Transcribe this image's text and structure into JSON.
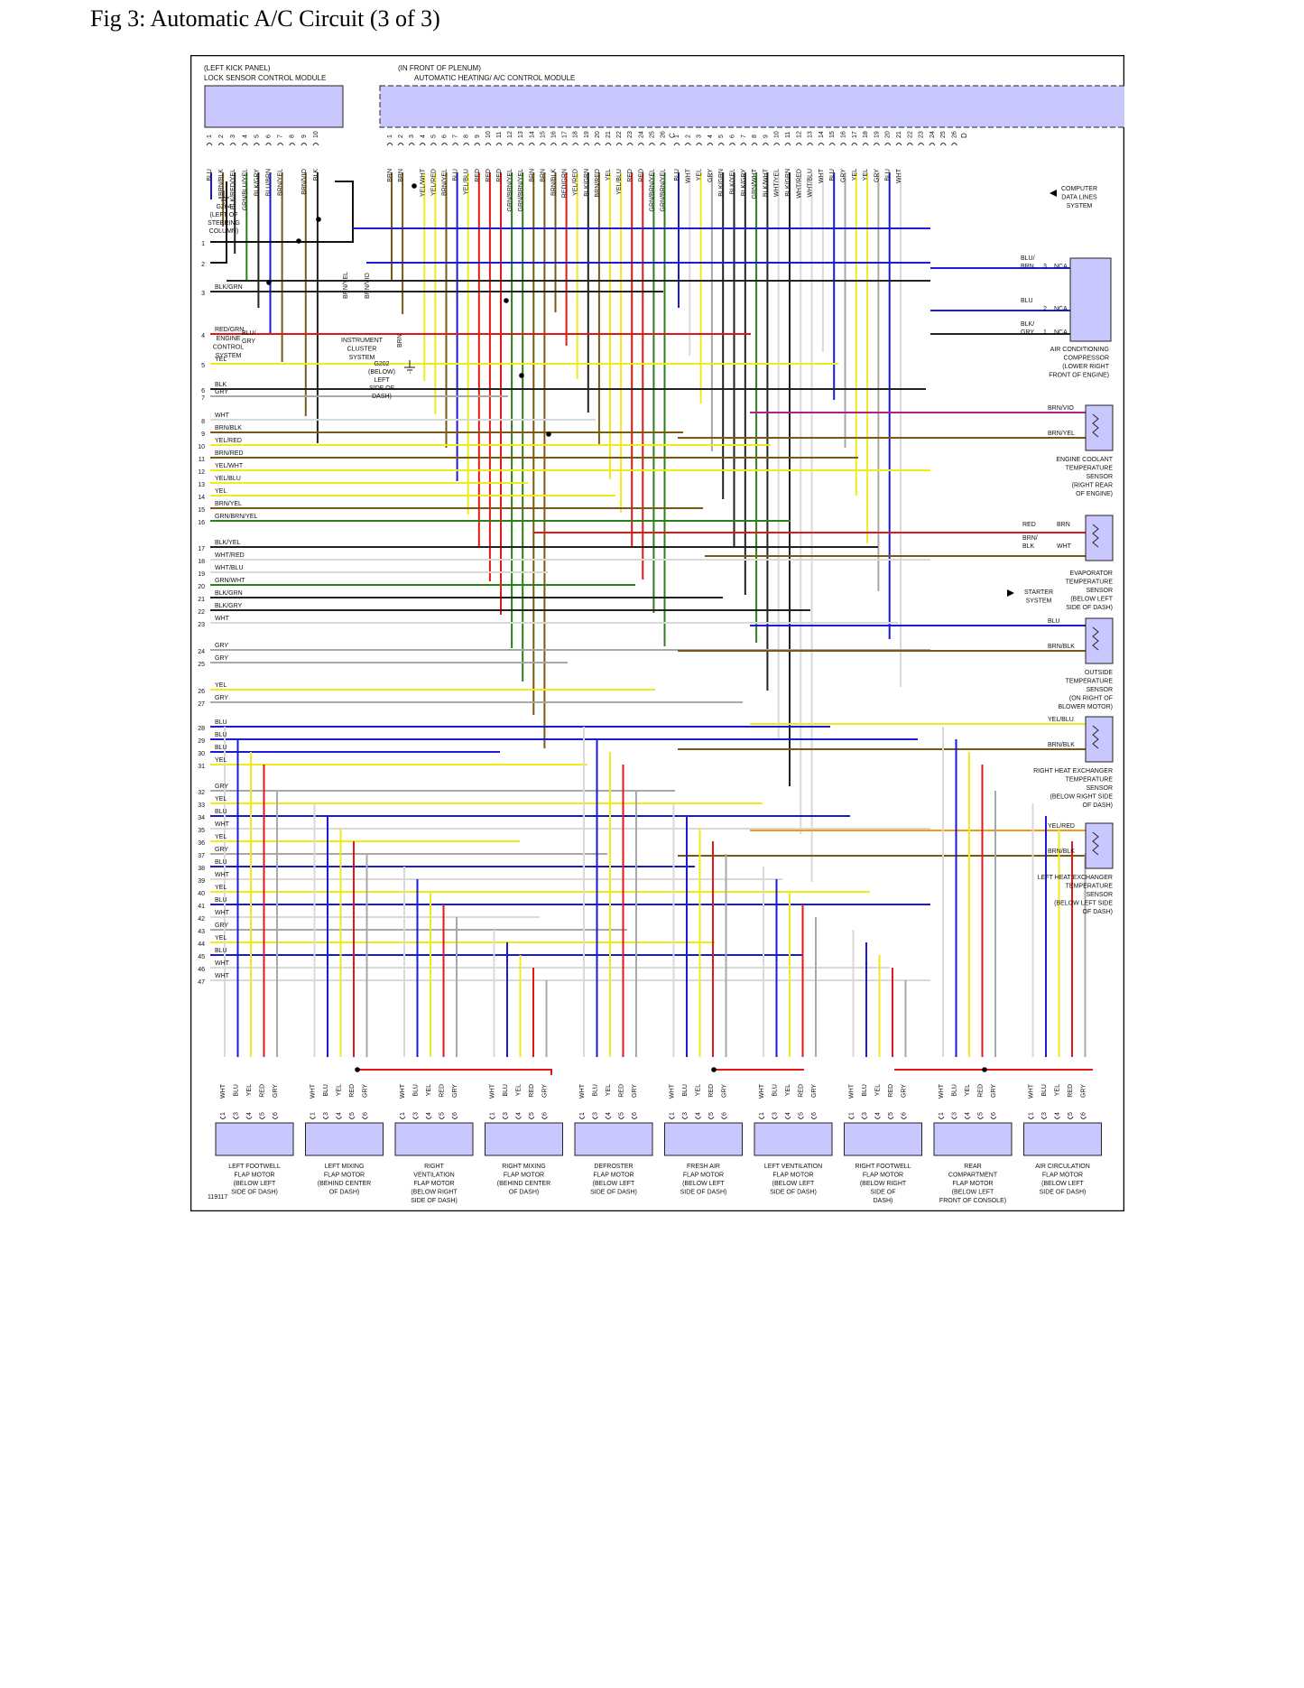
{
  "page_title": "Fig 3: Automatic A/C Circuit (3 of 3)",
  "figure_id": "119117",
  "lock_module": {
    "location": "(LEFT KICK PANEL)",
    "name": "LOCK SENSOR CONTROL MODULE",
    "pins": [
      {
        "n": "1",
        "c": "BLU"
      },
      {
        "n": "2",
        "c": "BRN/BLK"
      },
      {
        "n": "3",
        "c": "BLK/RED/YEL"
      },
      {
        "n": "4",
        "c": "GRN/BLU/YEL"
      },
      {
        "n": "5",
        "c": "BLK/GRY"
      },
      {
        "n": "6",
        "c": "BLU/BRN"
      },
      {
        "n": "7",
        "c": "BRN/YEL"
      },
      {
        "n": "8",
        "c": ""
      },
      {
        "n": "9",
        "c": "BRN/VIO"
      },
      {
        "n": "10",
        "c": "BLK"
      }
    ]
  },
  "ac_module": {
    "location": "(IN FRONT OF PLENUM)",
    "name": "AUTOMATIC HEATING/ A/C CONTROL MODULE",
    "conn_c": [
      {
        "n": "1",
        "c": "BRN"
      },
      {
        "n": "2",
        "c": "BRN"
      },
      {
        "n": "3",
        "c": ""
      },
      {
        "n": "4",
        "c": "YEL/WHT"
      },
      {
        "n": "5",
        "c": "YEL/RED"
      },
      {
        "n": "6",
        "c": "BRN/YEL"
      },
      {
        "n": "7",
        "c": "BLU"
      },
      {
        "n": "8",
        "c": "YEL/BLU"
      },
      {
        "n": "9",
        "c": "RED"
      },
      {
        "n": "10",
        "c": "RED"
      },
      {
        "n": "11",
        "c": "RED"
      },
      {
        "n": "12",
        "c": "GRN/BRN/YEL"
      },
      {
        "n": "13",
        "c": "GRN/BRN/YEL"
      },
      {
        "n": "14",
        "c": "BRN"
      },
      {
        "n": "15",
        "c": "BRN"
      },
      {
        "n": "16",
        "c": "BRN/BLK"
      },
      {
        "n": "17",
        "c": "RED/GRN"
      },
      {
        "n": "18",
        "c": "YEL/RED"
      },
      {
        "n": "19",
        "c": "BLK/GRN"
      },
      {
        "n": "20",
        "c": "BRN/RED"
      },
      {
        "n": "21",
        "c": "YEL"
      },
      {
        "n": "22",
        "c": "YEL/BLU"
      },
      {
        "n": "23",
        "c": "RED"
      },
      {
        "n": "24",
        "c": "RED"
      },
      {
        "n": "25",
        "c": "GRN/BRN/YEL"
      },
      {
        "n": "26",
        "c": "GRN/BRN/YEL"
      }
    ],
    "conn_c_label": "C",
    "conn_d": [
      {
        "n": "1",
        "c": "BLU"
      },
      {
        "n": "2",
        "c": "WHT"
      },
      {
        "n": "3",
        "c": "YEL"
      },
      {
        "n": "4",
        "c": "GRY"
      },
      {
        "n": "5",
        "c": "BLK/GRN"
      },
      {
        "n": "6",
        "c": "BLK/YEL"
      },
      {
        "n": "7",
        "c": "BLK/GRY"
      },
      {
        "n": "8",
        "c": "GRN/WHT"
      },
      {
        "n": "9",
        "c": "BLK/WHT"
      },
      {
        "n": "10",
        "c": "WHT/YEL"
      },
      {
        "n": "11",
        "c": "BLK/GRN"
      },
      {
        "n": "12",
        "c": "WHT/RED"
      },
      {
        "n": "13",
        "c": "WHT/BLU"
      },
      {
        "n": "14",
        "c": "WHT"
      },
      {
        "n": "15",
        "c": "BLU"
      },
      {
        "n": "16",
        "c": "GRY"
      },
      {
        "n": "17",
        "c": "YEL"
      },
      {
        "n": "18",
        "c": "YEL"
      },
      {
        "n": "19",
        "c": "GRY"
      },
      {
        "n": "20",
        "c": "BLU"
      },
      {
        "n": "21",
        "c": "WHT"
      },
      {
        "n": "22",
        "c": ""
      },
      {
        "n": "23",
        "c": ""
      },
      {
        "n": "24",
        "c": ""
      },
      {
        "n": "25",
        "c": ""
      },
      {
        "n": "26",
        "c": ""
      }
    ],
    "conn_d_label": "D"
  },
  "ground_g204": [
    "G204",
    "(LEFT OF",
    "STEERING",
    "COLUMN)"
  ],
  "ground_g202": [
    "G202",
    "(BELOW)",
    "LEFT",
    "SIDE OF",
    "DASH)"
  ],
  "engine_control": [
    "ENGINE",
    "CONTROL",
    "SYSTEM"
  ],
  "instrument_cluster": [
    "INSTRUMENT",
    "CLUSTER",
    "SYSTEM"
  ],
  "small_labels": {
    "blu_gry_1": "BLU/",
    "blu_gry_2": "GRY",
    "brn_yel_v": "BRN/YEL",
    "brn_vio_v": "BRN/VIO",
    "brn_v": "BRN"
  },
  "left_rows": [
    {
      "n": "1",
      "c": ""
    },
    {
      "n": "2",
      "c": ""
    },
    {
      "n": "3",
      "c": "BLK/GRN"
    },
    {
      "n": "4",
      "c": "RED/GRN"
    },
    {
      "n": "5",
      "c": "YEL"
    },
    {
      "n": "6",
      "c": "BLK"
    },
    {
      "n": "7",
      "c": "GRY"
    },
    {
      "n": "8",
      "c": "WHT"
    },
    {
      "n": "9",
      "c": "BRN/BLK"
    },
    {
      "n": "10",
      "c": "YEL/RED"
    },
    {
      "n": "11",
      "c": "BRN/RED"
    },
    {
      "n": "12",
      "c": "YEL/WHT"
    },
    {
      "n": "13",
      "c": "YEL/BLU"
    },
    {
      "n": "14",
      "c": "YEL"
    },
    {
      "n": "15",
      "c": "BRN/YEL"
    },
    {
      "n": "16",
      "c": "GRN/BRN/YEL"
    },
    {
      "n": "17",
      "c": "BLK/YEL"
    },
    {
      "n": "18",
      "c": "WHT/RED"
    },
    {
      "n": "19",
      "c": "WHT/BLU"
    },
    {
      "n": "20",
      "c": "GRN/WHT"
    },
    {
      "n": "21",
      "c": "BLK/GRN"
    },
    {
      "n": "22",
      "c": "BLK/GRY"
    },
    {
      "n": "23",
      "c": "WHT"
    },
    {
      "n": "24",
      "c": "GRY"
    },
    {
      "n": "25",
      "c": "GRY"
    },
    {
      "n": "26",
      "c": "YEL"
    },
    {
      "n": "27",
      "c": "GRY"
    },
    {
      "n": "28",
      "c": "BLU"
    },
    {
      "n": "29",
      "c": "BLU"
    },
    {
      "n": "30",
      "c": "BLU"
    },
    {
      "n": "31",
      "c": "YEL"
    },
    {
      "n": "32",
      "c": "GRY"
    },
    {
      "n": "33",
      "c": "YEL"
    },
    {
      "n": "34",
      "c": "BLU"
    },
    {
      "n": "35",
      "c": "WHT"
    },
    {
      "n": "36",
      "c": "YEL"
    },
    {
      "n": "37",
      "c": "GRY"
    },
    {
      "n": "38",
      "c": "BLU"
    },
    {
      "n": "39",
      "c": "WHT"
    },
    {
      "n": "40",
      "c": "YEL"
    },
    {
      "n": "41",
      "c": "BLU"
    },
    {
      "n": "42",
      "c": "WHT"
    },
    {
      "n": "43",
      "c": "GRY"
    },
    {
      "n": "44",
      "c": "YEL"
    },
    {
      "n": "45",
      "c": "BLU"
    },
    {
      "n": "46",
      "c": "WHT"
    },
    {
      "n": "47",
      "c": "WHT"
    }
  ],
  "computer_data": [
    "COMPUTER",
    "DATA LINES",
    "SYSTEM"
  ],
  "compressor": {
    "wires": [
      {
        "c1": "BLU/",
        "c2": "BRN",
        "pin": "3",
        "nca": "NCA"
      },
      {
        "c1": "BLU",
        "c2": "",
        "pin": "2",
        "nca": "NCA"
      },
      {
        "c1": "BLK/",
        "c2": "GRY",
        "pin": "1",
        "nca": "NCA"
      }
    ],
    "label": [
      "AIR CONDITIONING",
      "COMPRESSOR",
      "(LOWER RIGHT",
      "FRONT OF ENGINE)"
    ]
  },
  "coolant_sensor": {
    "w1": "BRN/VIO",
    "w2": "BRN/YEL",
    "label": [
      "ENGINE COOLANT",
      "TEMPERATURE",
      "SENSOR",
      "(RIGHT REAR",
      "OF ENGINE)"
    ]
  },
  "evap_sensor": {
    "w1a": "RED",
    "w1b": "BRN",
    "w2a": "BRN/",
    "w2b": "BLK",
    "w2c": "WHT",
    "label": [
      "EVAPORATOR",
      "TEMPERATURE",
      "SENSOR",
      "(BELOW LEFT",
      "SIDE OF DASH)"
    ]
  },
  "starter": [
    "STARTER",
    "SYSTEM"
  ],
  "outside_sensor": {
    "w1": "BLU",
    "w2": "BRN/BLK",
    "label": [
      "OUTSIDE",
      "TEMPERATURE",
      "SENSOR",
      "(ON RIGHT OF",
      "BLOWER MOTOR)"
    ]
  },
  "rhx_sensor": {
    "w1": "YEL/BLU",
    "w2": "BRN/BLK",
    "label": [
      "RIGHT HEAT EXCHANGER",
      "TEMPERATURE",
      "SENSOR",
      "(BELOW RIGHT SIDE",
      "OF DASH)"
    ]
  },
  "lhx_sensor": {
    "w1": "YEL/RED",
    "w2": "BRN/BLK",
    "label": [
      "LEFT HEAT EXCHANGER",
      "TEMPERATURE",
      "SENSOR",
      "(BELOW LEFT SIDE",
      "OF DASH)"
    ]
  },
  "motor_pins": [
    {
      "n": "1",
      "c": "WHT"
    },
    {
      "n": "3",
      "c": "BLU"
    },
    {
      "n": "4",
      "c": "YEL"
    },
    {
      "n": "5",
      "c": "RED"
    },
    {
      "n": "6",
      "c": "GRY"
    }
  ],
  "motors": [
    {
      "label": [
        "LEFT FOOTWELL",
        "FLAP MOTOR",
        "(BELOW LEFT",
        "SIDE OF DASH)"
      ]
    },
    {
      "label": [
        "LEFT MIXING",
        "FLAP MOTOR",
        "(BEHIND CENTER",
        "OF DASH)"
      ]
    },
    {
      "label": [
        "RIGHT",
        "VENTILATION",
        "FLAP MOTOR",
        "(BELOW RIGHT",
        "SIDE OF DASH)"
      ]
    },
    {
      "label": [
        "RIGHT MIXING",
        "FLAP MOTOR",
        "(BEHIND CENTER",
        "OF DASH)"
      ]
    },
    {
      "label": [
        "DEFROSTER",
        "FLAP MOTOR",
        "(BELOW LEFT",
        "SIDE OF DASH)"
      ]
    },
    {
      "label": [
        "FRESH AIR",
        "FLAP MOTOR",
        "(BELOW LEFT",
        "SIDE OF DASH)"
      ]
    },
    {
      "label": [
        "LEFT VENTILATION",
        "FLAP MOTOR",
        "(BELOW LEFT",
        "SIDE OF DASH)"
      ]
    },
    {
      "label": [
        "RIGHT FOOTWELL",
        "FLAP MOTOR",
        "(BELOW RIGHT",
        "SIDE OF",
        "DASH)"
      ]
    },
    {
      "label": [
        "REAR",
        "COMPARTMENT",
        "FLAP MOTOR",
        "(BELOW LEFT",
        "FRONT OF CONSOLE)"
      ]
    },
    {
      "label": [
        "AIR CIRCULATION",
        "FLAP MOTOR",
        "(BELOW LEFT",
        "SIDE OF DASH)"
      ]
    }
  ],
  "wire_colors": {
    "BLU": "#1a1ad6",
    "YEL": "#f2ea1a",
    "RED": "#e01818",
    "GRY": "#a8a8a8",
    "WHT": "#d9d9d9",
    "BRN": "#7a5a12",
    "BLK": "#222222",
    "GRN": "#2e7d1e",
    "ORG": "#f09a1a",
    "VIO": "#b0208a",
    "module_fill": "#c8c8ff"
  }
}
